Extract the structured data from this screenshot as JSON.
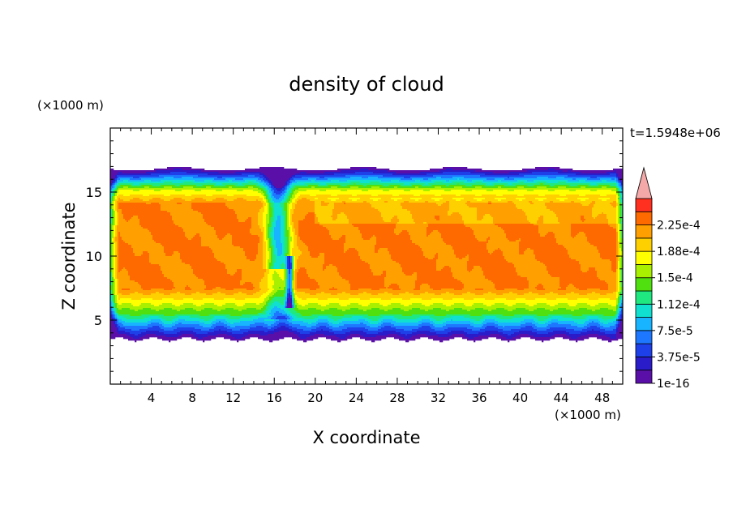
{
  "chart_data": {
    "type": "heatmap",
    "title": "density of cloud",
    "xlabel": "X coordinate",
    "ylabel": "Z coordinate",
    "x_unit": "(×1000 m)",
    "y_unit": "(×1000 m)",
    "time_label": "t=1.5948e+06",
    "xlim": [
      0,
      50
    ],
    "ylim": [
      0,
      20
    ],
    "x_ticks": [
      4,
      8,
      12,
      16,
      20,
      24,
      28,
      32,
      36,
      40,
      44,
      48
    ],
    "y_ticks": [
      5,
      10,
      15
    ],
    "colorbar": {
      "levels": [
        1e-16,
        1.875e-05,
        3.75e-05,
        5.625e-05,
        7.5e-05,
        9.375e-05,
        0.0001125,
        0.00013125,
        0.00015,
        0.00016875,
        0.0001875,
        0.00020625,
        0.000225,
        0.00024375
      ],
      "labels": [
        "1e-16",
        "3.75e-5",
        "7.5e-5",
        "1.12e-4",
        "1.5e-4",
        "1.88e-4",
        "2.25e-4"
      ],
      "colors": [
        "#5a10a8",
        "#2a1cc8",
        "#1e40e8",
        "#1e78ff",
        "#18b4ff",
        "#10e0d0",
        "#20e880",
        "#50e010",
        "#a8f000",
        "#ffff00",
        "#ffd000",
        "#ffa000",
        "#ff6a00",
        "#ff3020"
      ],
      "overflow_color": "#f4a8a8"
    },
    "field_description_values": {
      "cloud_base_km": 3.5,
      "cloud_top_km": 16.8,
      "core_layer_km": [
        7,
        15
      ],
      "core_value": 0.00023
    }
  }
}
